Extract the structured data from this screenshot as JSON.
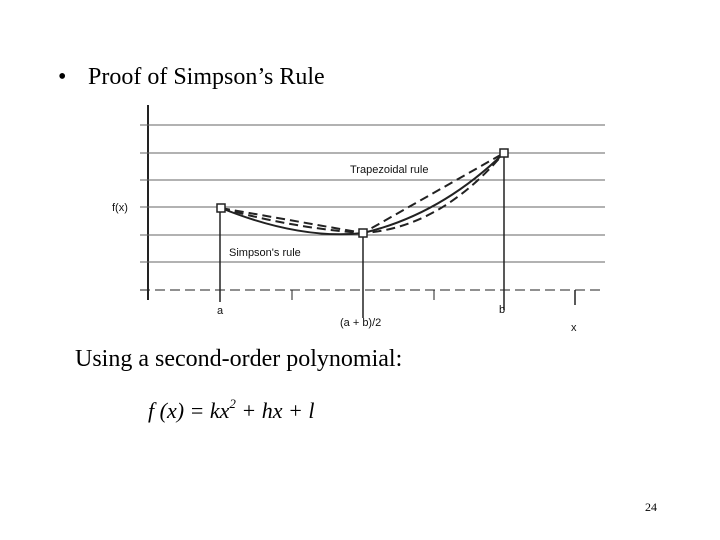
{
  "slide": {
    "title": "Proof of Simpson’s Rule",
    "figure": {
      "y_label": "f(x)",
      "trapezoid_label": "Trapezoidal rule",
      "simpson_label": "Simpson's rule",
      "x_a": "a",
      "x_mid": "(a + b)/2",
      "x_b": "b",
      "x_axis": "x"
    },
    "text": "Using a second-order polynomial:",
    "formula": {
      "lhs": "f (x) = kx",
      "exponent": "2",
      "rhs": " + hx + l"
    },
    "page_number": "24"
  }
}
